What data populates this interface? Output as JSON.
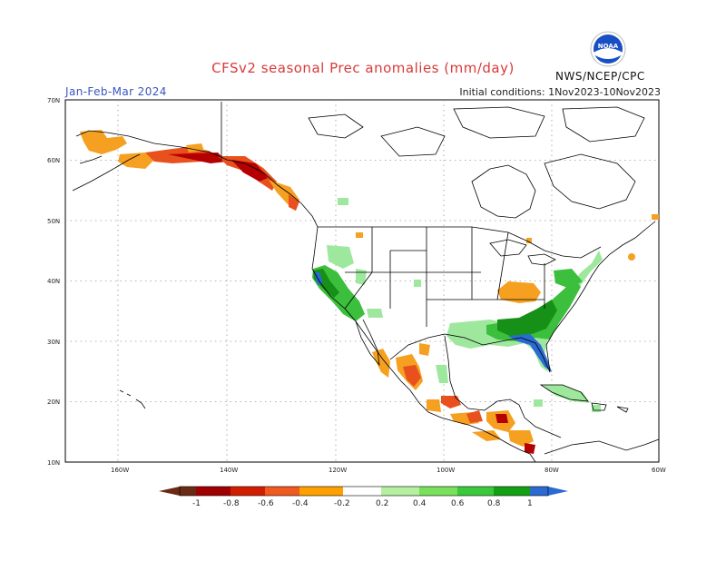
{
  "header": {
    "title": "CFSv2 seasonal Prec anomalies (mm/day)",
    "season": "Jan-Feb-Mar 2024",
    "initial_conditions": "Initial conditions: 1Nov2023-10Nov2023",
    "agency": "NWS/NCEP/CPC",
    "logo_text": "NOAA"
  },
  "map": {
    "lat_labels": [
      "70N",
      "60N",
      "50N",
      "40N",
      "30N",
      "20N",
      "10N"
    ],
    "lon_labels": [
      "160W",
      "140W",
      "120W",
      "100W",
      "80W",
      "60W"
    ],
    "colors": {
      "dry_strong": "#b40000",
      "dry_mid": "#e8501e",
      "dry_light": "#f5a020",
      "wet_light": "#9ee89e",
      "wet_mid": "#3cbf3c",
      "wet_strong": "#169016",
      "wet_max": "#2a6ad2"
    }
  },
  "colorbar": {
    "labels": [
      "-1",
      "-0.8",
      "-0.6",
      "-0.4",
      "-0.2",
      "0.2",
      "0.4",
      "0.6",
      "0.8",
      "1"
    ],
    "colors": [
      "#6b2a14",
      "#a00000",
      "#d21e00",
      "#f05a1e",
      "#ffa000",
      "#ffffff",
      "#b4f0a0",
      "#78e05a",
      "#3cc83c",
      "#14a014",
      "#2a6ad2"
    ]
  }
}
